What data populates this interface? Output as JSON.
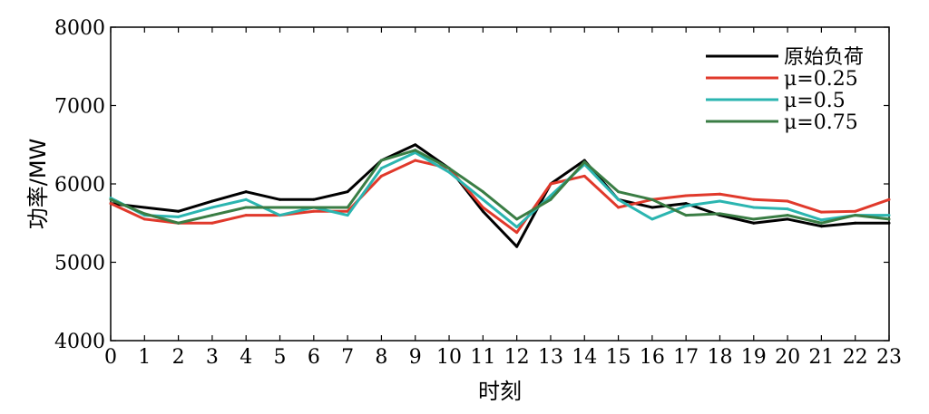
{
  "chart_data": {
    "type": "line",
    "title": "",
    "xlabel": "时刻",
    "ylabel": "功率/MW",
    "xlim": [
      0,
      23
    ],
    "ylim": [
      4000,
      8000
    ],
    "x": [
      0,
      1,
      2,
      3,
      4,
      5,
      6,
      7,
      8,
      9,
      10,
      11,
      12,
      13,
      14,
      15,
      16,
      17,
      18,
      19,
      20,
      21,
      22,
      23
    ],
    "xticks": [
      "0",
      "1",
      "2",
      "3",
      "4",
      "5",
      "6",
      "7",
      "8",
      "9",
      "10",
      "11",
      "12",
      "13",
      "14",
      "15",
      "16",
      "17",
      "18",
      "19",
      "20",
      "21",
      "22",
      "23"
    ],
    "yticks": [
      "4000",
      "5000",
      "6000",
      "7000",
      "8000"
    ],
    "grid": false,
    "legend_position": "top-right",
    "series": [
      {
        "name": "原始负荷",
        "color": "#000000",
        "values": [
          5750,
          5700,
          5650,
          5780,
          5900,
          5800,
          5800,
          5900,
          6300,
          6500,
          6200,
          5650,
          5200,
          6000,
          6300,
          5800,
          5700,
          5750,
          5600,
          5500,
          5550,
          5460,
          5500,
          5500
        ]
      },
      {
        "name": "μ=0.25",
        "color": "#e0392b",
        "values": [
          5750,
          5550,
          5500,
          5500,
          5600,
          5600,
          5650,
          5650,
          6100,
          6300,
          6200,
          5700,
          5380,
          6000,
          6100,
          5700,
          5800,
          5850,
          5870,
          5800,
          5780,
          5640,
          5650,
          5800
        ]
      },
      {
        "name": "μ=0.5",
        "color": "#2bb5b0",
        "values": [
          5820,
          5600,
          5580,
          5700,
          5800,
          5600,
          5700,
          5600,
          6200,
          6400,
          6150,
          5800,
          5450,
          5850,
          6250,
          5800,
          5550,
          5720,
          5780,
          5700,
          5680,
          5540,
          5600,
          5600
        ]
      },
      {
        "name": "μ=0.75",
        "color": "#3a7d44",
        "values": [
          5800,
          5620,
          5500,
          5600,
          5700,
          5700,
          5700,
          5700,
          6300,
          6430,
          6200,
          5900,
          5550,
          5800,
          6280,
          5900,
          5800,
          5600,
          5620,
          5550,
          5600,
          5500,
          5600,
          5550
        ]
      }
    ]
  }
}
